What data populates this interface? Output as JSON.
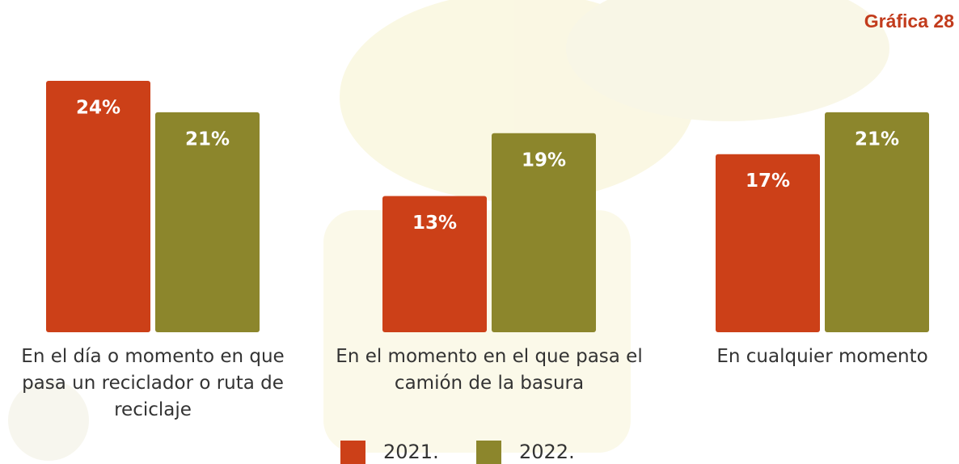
{
  "chart_data": {
    "type": "bar",
    "title": "Gráfica 28",
    "categories": [
      "En el día o momento en que pasa un reciclador o ruta de reciclaje",
      "En el momento en el que pasa el camión de la basura",
      "En cualquier momento"
    ],
    "series": [
      {
        "name": "2021.",
        "color": "#cc4018",
        "values": [
          24,
          13,
          17
        ],
        "value_labels": [
          "24%",
          "13%",
          "17%"
        ]
      },
      {
        "name": "2022.",
        "color": "#8c862c",
        "values": [
          21,
          19,
          21
        ],
        "value_labels": [
          "21%",
          "19%",
          "21%"
        ]
      }
    ],
    "legend": "bottom"
  }
}
